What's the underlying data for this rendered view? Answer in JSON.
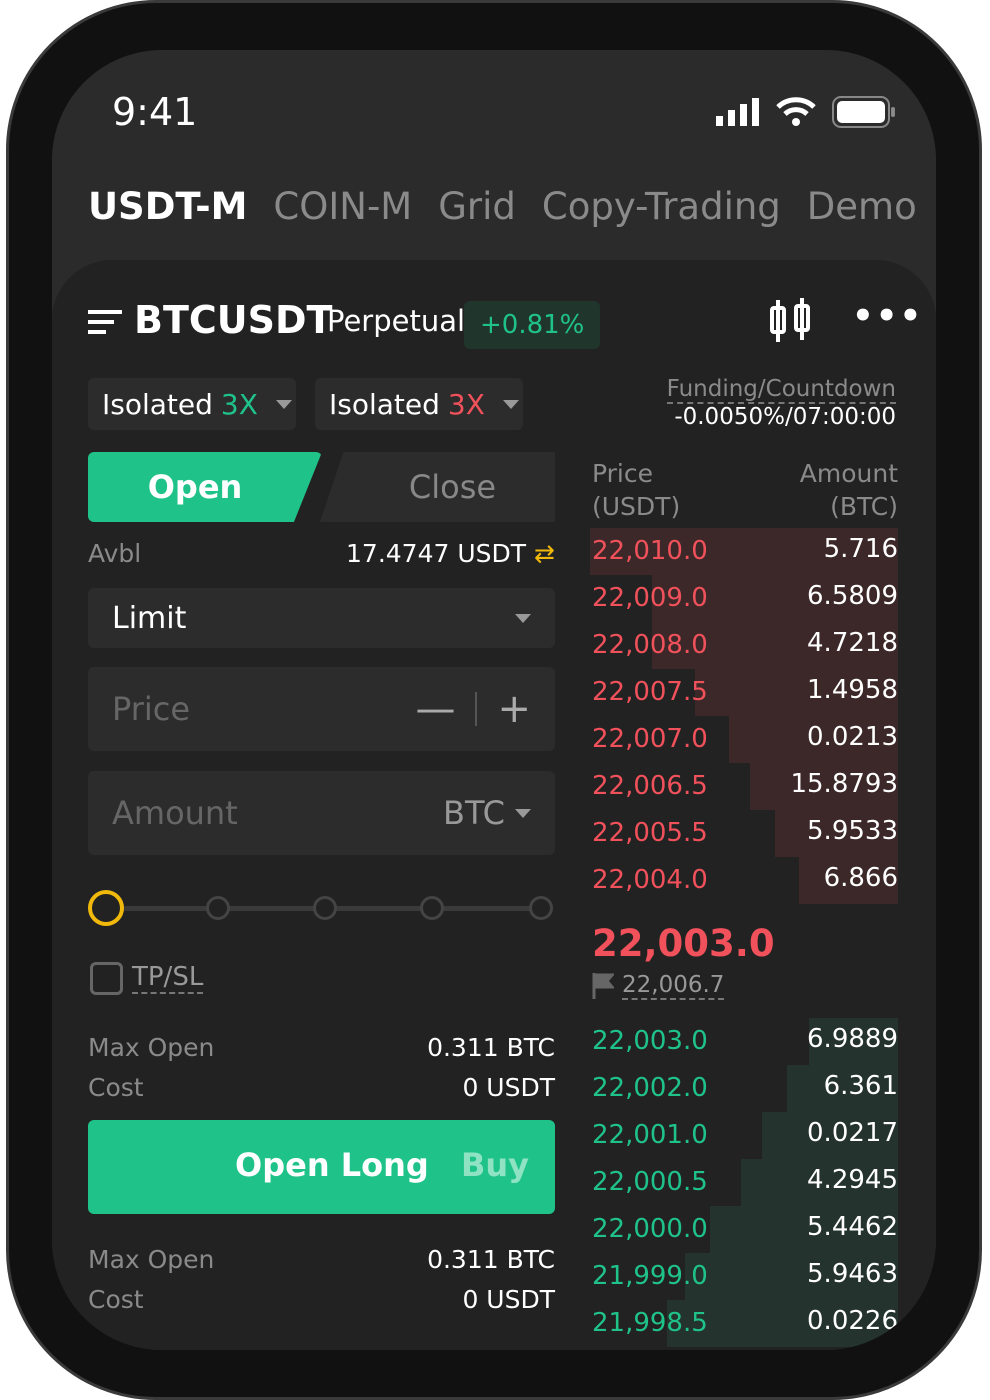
{
  "status": {
    "time": "9:41"
  },
  "tabs": [
    {
      "label": "USDT-M",
      "active": true
    },
    {
      "label": "COIN-M"
    },
    {
      "label": "Grid"
    },
    {
      "label": "Copy-Trading"
    },
    {
      "label": "Demo"
    }
  ],
  "symbol": {
    "name": "BTCUSDT",
    "type": "Perpetual",
    "change": "+0.81%"
  },
  "margin": [
    {
      "mode": "Isolated",
      "lev": "3X",
      "color": "#1fc38a"
    },
    {
      "mode": "Isolated",
      "lev": "3X",
      "color": "#f0515b"
    }
  ],
  "funding": {
    "label": "Funding/Countdown",
    "value": "-0.0050%/07:00:00"
  },
  "order": {
    "open": "Open",
    "close": "Close",
    "avbl_label": "Avbl",
    "avbl": "17.4747 USDT",
    "type": "Limit",
    "price_ph": "Price",
    "amount_ph": "Amount",
    "unit": "BTC",
    "tpsl": "TP/SL",
    "max_open_label": "Max Open",
    "max_open": "0.311 BTC",
    "cost_label": "Cost",
    "cost": "0 USDT",
    "long_btn": "Open Long",
    "long_sub": "Buy",
    "max_open2": "0.311 BTC",
    "cost2": "0 USDT",
    "slider_pct": 0
  },
  "book": {
    "price_h1": "Price",
    "price_h2": "(USDT)",
    "amount_h1": "Amount",
    "amount_h2": "(BTC)",
    "asks": [
      {
        "p": "22,010.0",
        "a": "5.716",
        "d": 1.0
      },
      {
        "p": "22,009.0",
        "a": "6.5809",
        "d": 0.8
      },
      {
        "p": "22,008.0",
        "a": "4.7218",
        "d": 0.8
      },
      {
        "p": "22,007.5",
        "a": "1.4958",
        "d": 0.66
      },
      {
        "p": "22,007.0",
        "a": "0.0213",
        "d": 0.55
      },
      {
        "p": "22,006.5",
        "a": "15.8793",
        "d": 0.48
      },
      {
        "p": "22,005.5",
        "a": "5.9533",
        "d": 0.4
      },
      {
        "p": "22,004.0",
        "a": "6.866",
        "d": 0.32
      }
    ],
    "last": "22,003.0",
    "mark": "22,006.7",
    "bids": [
      {
        "p": "22,003.0",
        "a": "6.9889",
        "d": 0.29
      },
      {
        "p": "22,002.0",
        "a": "6.361",
        "d": 0.36
      },
      {
        "p": "22,001.0",
        "a": "0.0217",
        "d": 0.44
      },
      {
        "p": "22,000.5",
        "a": "4.2945",
        "d": 0.51
      },
      {
        "p": "22,000.0",
        "a": "5.4462",
        "d": 0.61
      },
      {
        "p": "21,999.0",
        "a": "5.9463",
        "d": 0.69
      },
      {
        "p": "21,998.5",
        "a": "0.0226",
        "d": 0.75
      }
    ]
  },
  "colors": {
    "green": "#1fc38a",
    "red": "#f0515b",
    "accent": "#f0b90b"
  }
}
